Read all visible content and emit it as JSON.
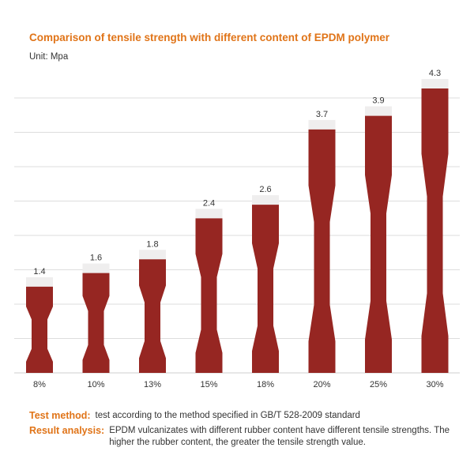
{
  "chart_data": {
    "type": "bar",
    "title": "Comparison of tensile strength with different content of EPDM polymer",
    "unit": "Unit: Mpa",
    "categories": [
      "8%",
      "10%",
      "13%",
      "15%",
      "18%",
      "20%",
      "25%",
      "30%"
    ],
    "values": [
      1.4,
      1.6,
      1.8,
      2.4,
      2.6,
      3.7,
      3.9,
      4.3
    ],
    "value_labels": [
      "1.4",
      "1.6",
      "1.8",
      "2.4",
      "2.6",
      "3.7",
      "3.9",
      "4.3"
    ],
    "ylim": [
      0,
      4.3
    ],
    "grid": true,
    "colors": {
      "bar": "#962622",
      "cap": "#efeeee",
      "grid": "#dddddd"
    }
  },
  "notes": {
    "test_label": "Test method:",
    "test_text": "test according to the method specified in GB/T 528-2009 standard",
    "result_label": "Result analysis:",
    "result_text": "EPDM vulcanizates with different rubber content have different tensile strengths. The higher the rubber content, the greater the tensile strength value."
  }
}
